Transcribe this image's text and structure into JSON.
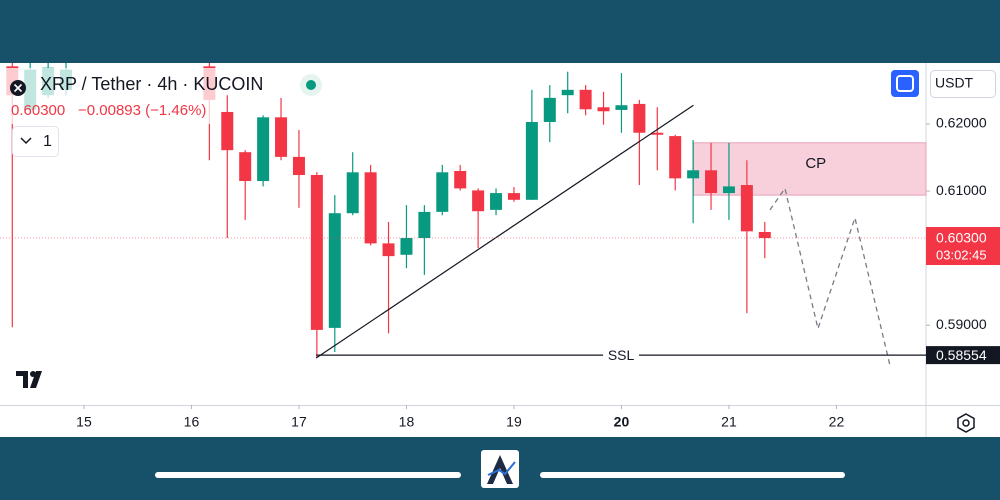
{
  "ui": {
    "symbol": "XRP / Tether · 4h · KUCOIN",
    "last": "0.60300",
    "change": "−0.00893 (−1.46%)",
    "interval_count": "1",
    "currency": "USDT"
  },
  "chart_data": {
    "type": "candlestick",
    "x": [
      14.3333,
      14.5,
      14.6667,
      14.8333,
      16.1667,
      16.3333,
      16.5,
      16.6667,
      16.8333,
      17,
      17.1667,
      17.3333,
      17.5,
      17.6667,
      17.8333,
      18,
      18.1667,
      18.3333,
      18.5,
      18.6667,
      18.8333,
      19,
      19.1667,
      19.3333,
      19.5,
      19.6667,
      19.8333,
      20,
      20.1667,
      20.3333,
      20.5,
      20.6667,
      20.8333,
      21,
      21.1667,
      21.3333
    ],
    "open": [
      0.6286,
      0.6221,
      0.6243,
      0.6251,
      0.6286,
      0.6218,
      0.6158,
      0.6115,
      0.621,
      0.6151,
      0.6124,
      0.5896,
      0.6067,
      0.6128,
      0.6022,
      0.6005,
      0.603,
      0.6069,
      0.613,
      0.6101,
      0.6072,
      0.6097,
      0.6087,
      0.6203,
      0.6243,
      0.6251,
      0.6225,
      0.6221,
      0.623,
      0.6187,
      0.6182,
      0.6119,
      0.6131,
      0.6097,
      0.6109,
      0.6039
    ],
    "high": [
      0.6291,
      0.6291,
      0.6291,
      0.6291,
      0.6291,
      0.6243,
      0.6161,
      0.6213,
      0.6239,
      0.6191,
      0.6128,
      0.6094,
      0.6158,
      0.6139,
      0.6054,
      0.6079,
      0.6079,
      0.6139,
      0.6139,
      0.6104,
      0.6104,
      0.6106,
      0.6251,
      0.6258,
      0.6278,
      0.6258,
      0.6248,
      0.6276,
      0.6236,
      0.6225,
      0.6184,
      0.6176,
      0.6172,
      0.6172,
      0.6146,
      0.6054
    ],
    "low": [
      0.5897,
      0.6216,
      0.6239,
      0.6243,
      0.6146,
      0.603,
      0.6057,
      0.6107,
      0.6146,
      0.6075,
      0.5851,
      0.586,
      0.6064,
      0.6019,
      0.5888,
      0.5985,
      0.5975,
      0.6064,
      0.6101,
      0.6015,
      0.6064,
      0.6084,
      0.6087,
      0.6173,
      0.6216,
      0.6213,
      0.6199,
      0.6187,
      0.6109,
      0.6131,
      0.6101,
      0.6052,
      0.6072,
      0.6057,
      0.5918,
      0.6
    ],
    "close": [
      0.6243,
      0.6281,
      0.6284,
      0.6281,
      0.6236,
      0.6161,
      0.6115,
      0.621,
      0.6151,
      0.6124,
      0.5893,
      0.6067,
      0.6128,
      0.6022,
      0.6003,
      0.603,
      0.6069,
      0.6128,
      0.6104,
      0.607,
      0.6097,
      0.6087,
      0.6203,
      0.6239,
      0.6251,
      0.6222,
      0.6219,
      0.6228,
      0.6187,
      0.6184,
      0.6119,
      0.6131,
      0.6097,
      0.6107,
      0.604,
      0.603
    ],
    "up_color": "#089981",
    "down_color": "#f23645",
    "xlim": [
      14.219,
      22.833
    ],
    "ylim": [
      0.5781,
      0.6291
    ],
    "xticks": [
      15,
      16,
      17,
      18,
      19,
      20,
      21,
      22
    ],
    "bold_xtick": 20,
    "yticks": [
      {
        "value": 0.62,
        "label": "0.62000"
      },
      {
        "value": 0.61,
        "label": "0.61000"
      },
      {
        "value": 0.59,
        "label": "0.59000"
      }
    ],
    "last_price": {
      "value": 0.603,
      "label": "0.60300",
      "countdown": "03:02:45"
    },
    "ssl": {
      "name": "SSL",
      "value": 0.58554,
      "label": "0.58554",
      "x_start": 17.16
    },
    "zone": {
      "name": "CP",
      "x_start": 20.67,
      "y": [
        0.6094,
        0.6172
      ],
      "color": "#f8d0dc"
    },
    "trendline": {
      "x": [
        17.16,
        20.67
      ],
      "y": [
        0.5851,
        0.6228
      ]
    },
    "projection": {
      "x": [
        21.382,
        21.521,
        21.828,
        22.172,
        22.498
      ],
      "y": [
        0.6072,
        0.6104,
        0.5895,
        0.606,
        0.584
      ]
    }
  }
}
